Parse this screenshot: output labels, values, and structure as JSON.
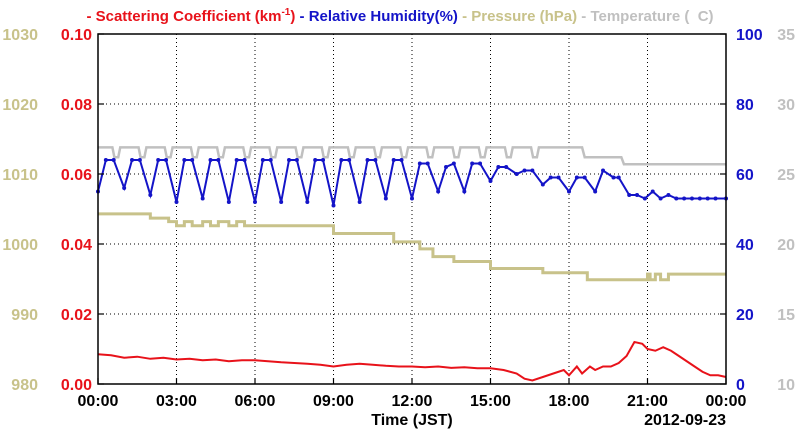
{
  "chart_data": {
    "type": "line",
    "title_date": "2012-09-23",
    "xlabel": "Time (JST)",
    "x_tick_labels": [
      "00:00",
      "03:00",
      "06:00",
      "09:00",
      "12:00",
      "15:00",
      "18:00",
      "21:00",
      "00:00"
    ],
    "x_range_hours": [
      0,
      24
    ],
    "grid": true,
    "legend_position": "top",
    "axes": {
      "pressure": {
        "label": "Pressure (hPa)",
        "side": "left-outer",
        "range": [
          980,
          1030
        ],
        "ticks": [
          980,
          990,
          1000,
          1010,
          1020,
          1030
        ],
        "tick_labels": [
          "980",
          "990",
          "1000",
          "1010",
          "1020",
          "1030"
        ],
        "color": "#c8c28a"
      },
      "scattering": {
        "label": "Scattering Coefficient (km-1)",
        "side": "left-inner",
        "range": [
          0.0,
          0.1
        ],
        "ticks": [
          0,
          0.02,
          0.04,
          0.06,
          0.08,
          0.1
        ],
        "tick_labels": [
          "0.00",
          "0.02",
          "0.04",
          "0.06",
          "0.08",
          "0.10"
        ],
        "color": "#e8121a"
      },
      "humidity": {
        "label": "Relative Humidity(%)",
        "side": "right-inner",
        "range": [
          0,
          100
        ],
        "ticks": [
          0,
          20,
          40,
          60,
          80,
          100
        ],
        "tick_labels": [
          "0",
          "20",
          "40",
          "60",
          "80",
          "100"
        ],
        "color": "#1414c8"
      },
      "temperature": {
        "label": "Temperature (C)",
        "side": "right-outer",
        "range": [
          10,
          35
        ],
        "ticks": [
          10,
          15,
          20,
          25,
          30,
          35
        ],
        "tick_labels": [
          "10",
          "15",
          "20",
          "25",
          "30",
          "35"
        ],
        "color": "#c0c0c0"
      }
    },
    "legend": [
      {
        "key": "scattering",
        "prefix": "-",
        "text": "Scattering Coefficient (km",
        "sup": "-1",
        "suffix": ")"
      },
      {
        "key": "humidity",
        "prefix": "-",
        "text": "Relative Humidity(%)",
        "sup": "",
        "suffix": ""
      },
      {
        "key": "pressure",
        "prefix": "-",
        "text": "Pressure (hPa)",
        "sup": "",
        "suffix": ""
      },
      {
        "key": "temperature",
        "prefix": "-",
        "text": "Temperature (",
        "sup": "",
        "suffix": "C)"
      }
    ],
    "series": [
      {
        "name": "Scattering Coefficient",
        "axis": "scattering",
        "x_hours": [
          0,
          0.5,
          1,
          1.5,
          2,
          2.5,
          3,
          3.5,
          4,
          4.5,
          5,
          5.5,
          6,
          6.5,
          7,
          7.5,
          8,
          8.5,
          9,
          9.5,
          10,
          10.5,
          11,
          11.5,
          12,
          12.5,
          13,
          13.5,
          14,
          14.5,
          15,
          15.5,
          16,
          16.3,
          16.6,
          17,
          17.4,
          17.8,
          18,
          18.3,
          18.5,
          18.8,
          19,
          19.3,
          19.6,
          19.9,
          20.2,
          20.5,
          20.8,
          21,
          21.3,
          21.6,
          21.9,
          22.2,
          22.5,
          22.8,
          23.1,
          23.4,
          23.7,
          24
        ],
        "values": [
          0.0085,
          0.0082,
          0.0075,
          0.0078,
          0.0072,
          0.0075,
          0.007,
          0.0072,
          0.0068,
          0.007,
          0.0065,
          0.0068,
          0.0068,
          0.0065,
          0.0062,
          0.006,
          0.0058,
          0.0055,
          0.005,
          0.0055,
          0.0058,
          0.0055,
          0.0052,
          0.005,
          0.005,
          0.0048,
          0.005,
          0.0046,
          0.0048,
          0.0045,
          0.0045,
          0.004,
          0.003,
          0.0015,
          0.001,
          0.002,
          0.003,
          0.004,
          0.0025,
          0.005,
          0.003,
          0.005,
          0.004,
          0.005,
          0.005,
          0.006,
          0.008,
          0.012,
          0.0115,
          0.01,
          0.0095,
          0.0105,
          0.0095,
          0.008,
          0.0065,
          0.005,
          0.0035,
          0.0025,
          0.0025,
          0.002
        ]
      },
      {
        "name": "Relative Humidity",
        "axis": "humidity",
        "x_hours": [
          0,
          0.3,
          0.6,
          1.0,
          1.3,
          1.6,
          2.0,
          2.3,
          2.6,
          3.0,
          3.3,
          3.6,
          4.0,
          4.3,
          4.6,
          5.0,
          5.3,
          5.6,
          6.0,
          6.3,
          6.6,
          7.0,
          7.3,
          7.6,
          8.0,
          8.3,
          8.6,
          9.0,
          9.3,
          9.6,
          10.0,
          10.3,
          10.6,
          11.0,
          11.3,
          11.6,
          12.0,
          12.3,
          12.6,
          13.0,
          13.3,
          13.6,
          14.0,
          14.3,
          14.6,
          15.0,
          15.3,
          15.6,
          16.0,
          16.3,
          16.6,
          17.0,
          17.3,
          17.6,
          18.0,
          18.3,
          18.6,
          19.0,
          19.3,
          19.7,
          19.9,
          20.3,
          20.6,
          20.9,
          21.2,
          21.5,
          21.8,
          22.1,
          22.4,
          22.7,
          23.0,
          23.3,
          23.6,
          24.0
        ],
        "values": [
          55,
          64,
          64,
          56,
          64,
          64,
          54,
          64,
          64,
          52,
          64,
          64,
          53,
          64,
          64,
          52,
          64,
          64,
          52,
          64,
          64,
          52,
          64,
          64,
          52,
          64,
          64,
          51,
          64,
          64,
          52,
          64,
          64,
          53,
          64,
          64,
          53,
          63,
          63,
          55,
          62,
          63,
          55,
          63,
          63,
          58,
          62,
          62,
          60,
          61,
          61,
          57,
          59,
          59,
          55,
          59,
          59,
          55,
          61,
          59,
          59,
          54,
          54,
          53,
          55,
          53,
          54,
          53,
          53,
          53,
          53,
          53,
          53,
          53
        ]
      },
      {
        "name": "Pressure",
        "axis": "pressure",
        "x_hours": [
          0,
          2.0,
          2.0,
          2.7,
          2.7,
          3.0,
          3.0,
          3.3,
          3.3,
          3.6,
          3.6,
          4.0,
          4.0,
          4.3,
          4.3,
          4.6,
          4.6,
          5.0,
          5.0,
          5.3,
          5.3,
          5.6,
          5.6,
          9.0,
          9.0,
          11.3,
          11.3,
          12.3,
          12.3,
          12.8,
          12.8,
          13.6,
          13.6,
          15.0,
          15.0,
          17.0,
          17.0,
          18.7,
          18.7,
          21.0,
          21.0,
          21.1,
          21.1,
          21.3,
          21.3,
          21.5,
          21.5,
          21.8,
          21.8,
          24.0
        ],
        "values": [
          1004.3,
          1004.3,
          1003.7,
          1003.7,
          1003.2,
          1003.2,
          1002.6,
          1002.6,
          1003.2,
          1003.2,
          1002.6,
          1002.6,
          1003.2,
          1003.2,
          1002.6,
          1002.6,
          1003.2,
          1003.2,
          1002.6,
          1002.6,
          1003.2,
          1003.2,
          1002.6,
          1002.6,
          1001.5,
          1001.5,
          1000.3,
          1000.3,
          999.3,
          999.3,
          998.2,
          998.2,
          997.5,
          997.5,
          996.5,
          996.5,
          995.9,
          995.9,
          994.9,
          994.9,
          995.7,
          995.7,
          994.9,
          994.9,
          995.7,
          995.7,
          994.9,
          994.9,
          995.7,
          995.7
        ]
      },
      {
        "name": "Temperature",
        "axis": "temperature",
        "x_hours": [
          0,
          24
        ],
        "step_pattern_high": 26.9,
        "step_pattern_low": 26.2,
        "values": [
          26.9,
          26.9
        ]
      }
    ]
  }
}
